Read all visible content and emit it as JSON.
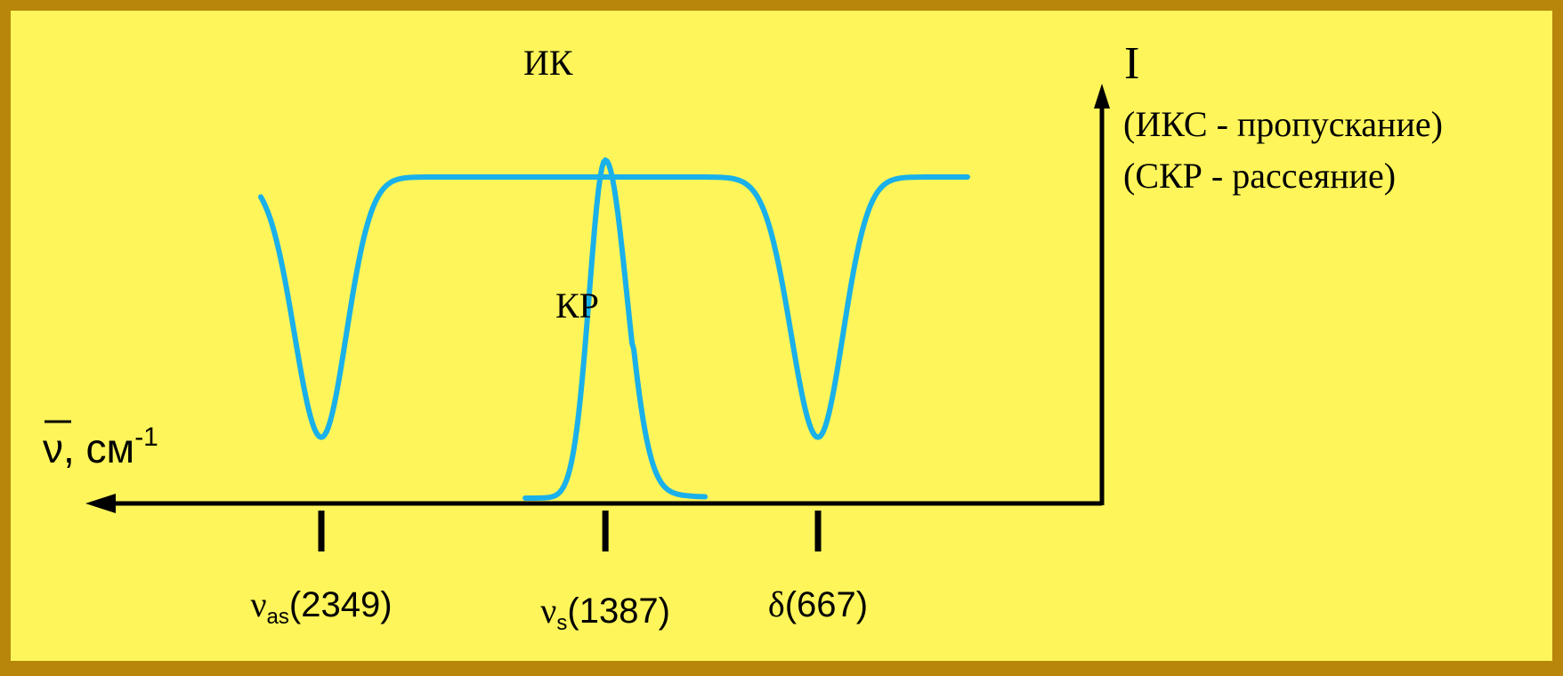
{
  "colors": {
    "frame": "#b8860b",
    "background": "#fdf55a",
    "curve": "#1ab0ea",
    "axis": "#000000"
  },
  "chart_data": {
    "type": "line",
    "x_axis": {
      "label": "ν, см",
      "label_superscript": "-1",
      "direction": "reversed",
      "ticks": [
        {
          "value": 2349,
          "symbol": "ν",
          "subscript": "as",
          "text": "(2349)"
        },
        {
          "value": 1387,
          "symbol": "ν",
          "subscript": "s",
          "text": "(1387)"
        },
        {
          "value": 667,
          "symbol": "δ",
          "subscript": "",
          "text": "(667)"
        }
      ]
    },
    "y_axis": {
      "label": "I",
      "notes": [
        "(ИКС - пропускание)",
        "(СКР - рассеяние)"
      ]
    },
    "series": [
      {
        "name": "ИК",
        "kind": "transmission",
        "baseline": 0.95,
        "bands": [
          {
            "x": 2349,
            "minimum": 0.18
          },
          {
            "x": 667,
            "minimum": 0.18
          }
        ]
      },
      {
        "name": "КР",
        "kind": "scattering",
        "baseline": 0.0,
        "bands": [
          {
            "x": 1387,
            "maximum": 1.0
          }
        ]
      }
    ]
  }
}
